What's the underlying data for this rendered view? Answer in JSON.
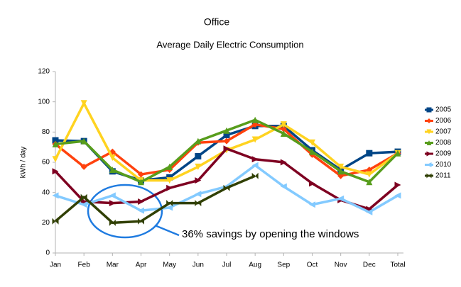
{
  "chart_data": {
    "type": "line",
    "title": "Office",
    "subtitle": "Average Daily Electric Consumption",
    "y_label": "kWh / day",
    "annotation": "36% savings by opening the windows",
    "categories": [
      "Jan",
      "Feb",
      "Mar",
      "Apr",
      "May",
      "Jun",
      "Jul",
      "Aug",
      "Sep",
      "Oct",
      "Nov",
      "Dec",
      "Total"
    ],
    "ylim": [
      0,
      120
    ],
    "yticks": [
      0,
      20,
      40,
      60,
      80,
      100,
      120
    ],
    "grid": false,
    "legend": "right",
    "series": [
      {
        "name": "2005",
        "color": "#004586",
        "marker": "square",
        "values": [
          74.5,
          74,
          54,
          48,
          50,
          64,
          78,
          84,
          84,
          68,
          55,
          66,
          67
        ]
      },
      {
        "name": "2006",
        "color": "#ff420e",
        "marker": "diamond",
        "values": [
          72,
          57,
          67,
          52,
          55,
          73,
          74,
          85,
          82,
          65,
          51,
          55,
          66
        ]
      },
      {
        "name": "2007",
        "color": "#ffd320",
        "marker": "triangle-down",
        "values": [
          62,
          99,
          63,
          48,
          48,
          57,
          68,
          75,
          85,
          73,
          57,
          52,
          66
        ]
      },
      {
        "name": "2008",
        "color": "#579d1c",
        "marker": "triangle-up",
        "values": [
          72,
          74,
          55,
          47,
          57,
          74,
          81,
          88,
          79,
          67,
          54,
          47,
          66
        ]
      },
      {
        "name": "2009",
        "color": "#7e0021",
        "marker": "triangle-right",
        "values": [
          54,
          34,
          33,
          34,
          43,
          48,
          69,
          62,
          60,
          46,
          35,
          29,
          45
        ]
      },
      {
        "name": "2010",
        "color": "#83caff",
        "marker": "triangle-left",
        "values": [
          38,
          32,
          38,
          28,
          30,
          39,
          44,
          58,
          44,
          32,
          36,
          27,
          38
        ]
      },
      {
        "name": "2011",
        "color": "#314004",
        "marker": "bowtie",
        "values": [
          21,
          37,
          20,
          21,
          33,
          33,
          43,
          51,
          null,
          null,
          null,
          null,
          null
        ]
      }
    ]
  }
}
